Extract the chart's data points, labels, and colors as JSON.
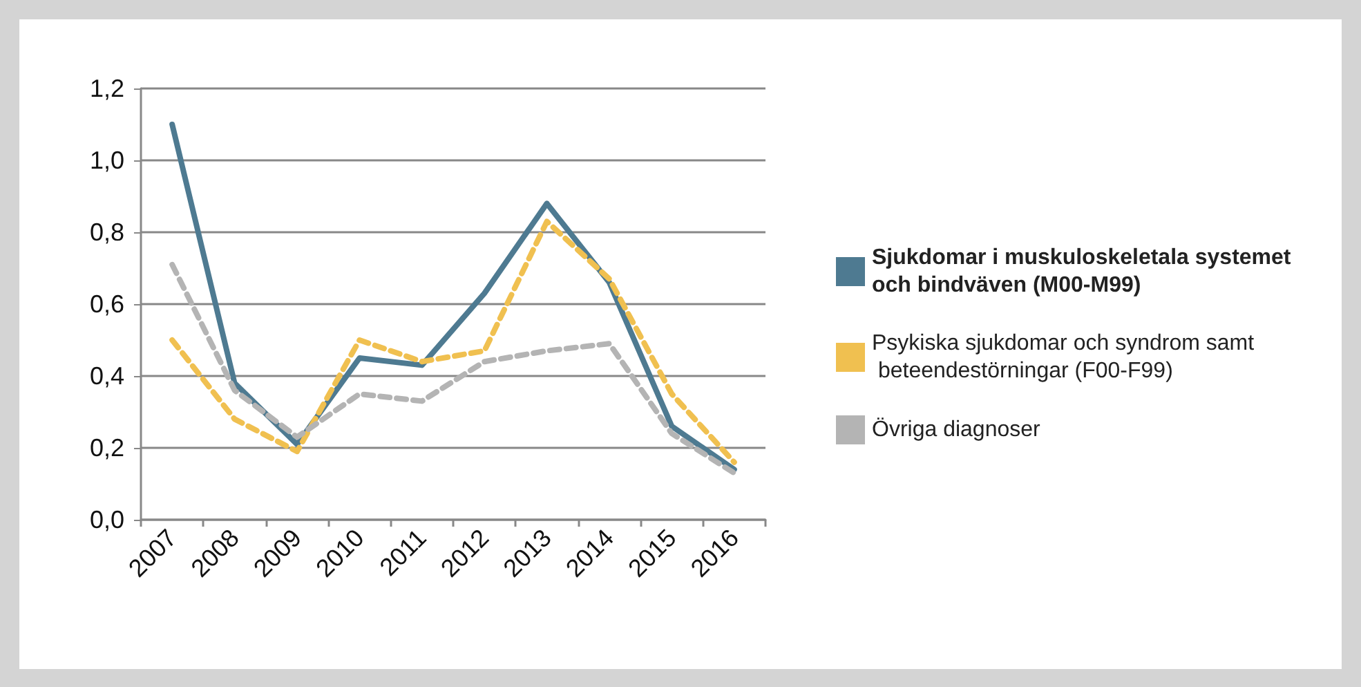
{
  "chart_data": {
    "type": "line",
    "categories": [
      "2007",
      "2008",
      "2009",
      "2010",
      "2011",
      "2012",
      "2013",
      "2014",
      "2015",
      "2016"
    ],
    "series": [
      {
        "name": "Sjukdomar i muskuloskeletala systemet och bindväven (M00-M99)",
        "color": "#4e7a91",
        "line_style": "solid",
        "values": [
          1.1,
          0.38,
          0.21,
          0.45,
          0.43,
          0.63,
          0.88,
          0.66,
          0.26,
          0.14
        ]
      },
      {
        "name": "Psykiska sjukdomar och syndrom samt beteendestörningar (F00-F99)",
        "color": "#f0c050",
        "line_style": "dashed",
        "values": [
          0.5,
          0.28,
          0.19,
          0.5,
          0.44,
          0.47,
          0.83,
          0.67,
          0.35,
          0.16
        ]
      },
      {
        "name": "Övriga diagnoser",
        "color": "#b4b4b4",
        "line_style": "dashed",
        "values": [
          0.71,
          0.36,
          0.23,
          0.35,
          0.33,
          0.44,
          0.47,
          0.49,
          0.24,
          0.13
        ]
      }
    ],
    "ylim": [
      0,
      1.2
    ],
    "yticks": [
      {
        "value": 0,
        "label": "0,0"
      },
      {
        "value": 0.2,
        "label": "0,2"
      },
      {
        "value": 0.4,
        "label": "0,4"
      },
      {
        "value": 0.6,
        "label": "0,6"
      },
      {
        "value": 0.8,
        "label": "0,8"
      },
      {
        "value": 1.0,
        "label": "1,0"
      },
      {
        "value": 1.2,
        "label": "1,2"
      }
    ],
    "grid": "y",
    "legend": "right",
    "marker": "none"
  }
}
